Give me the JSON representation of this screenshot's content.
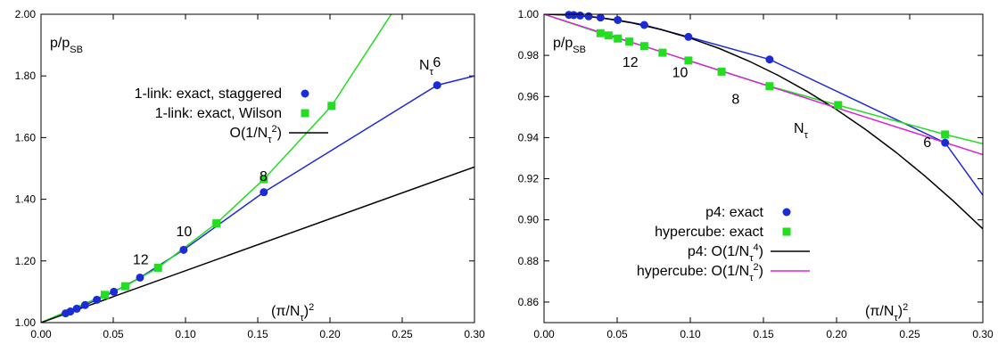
{
  "chart_data": [
    {
      "type": "scatter",
      "ylabel": "p/p",
      "ylabel_sub": "SB",
      "xlabel": "(π/N",
      "xlabel_sub": "τ",
      "xlabel_tail": ")",
      "xlabel_sup": "2",
      "xlim": [
        0.0,
        0.3
      ],
      "ylim": [
        1.0,
        2.0
      ],
      "xticks": [
        "0.00",
        "0.05",
        "0.10",
        "0.15",
        "0.20",
        "0.25",
        "0.30"
      ],
      "yticks": [
        "1.00",
        "1.20",
        "1.40",
        "1.60",
        "1.80",
        "2.00"
      ],
      "ntau_label": "N",
      "ntau_sub": "τ",
      "annotations": [
        {
          "text": "6",
          "x": 0.274,
          "y": 1.83
        },
        {
          "text": "8",
          "x": 0.154,
          "y": 1.46
        },
        {
          "text": "10",
          "x": 0.099,
          "y": 1.28
        },
        {
          "text": "12",
          "x": 0.069,
          "y": 1.19
        }
      ],
      "legend_position": "center-left",
      "series": [
        {
          "name": "1-link: exact, staggered",
          "color": "#1d2bd6",
          "marker": "circle",
          "x": [
            0.017,
            0.0203,
            0.0247,
            0.0305,
            0.0386,
            0.0504,
            0.0685,
            0.0987,
            0.1542,
            0.2742
          ],
          "y": [
            1.03,
            1.036,
            1.045,
            1.057,
            1.074,
            1.1,
            1.146,
            1.236,
            1.423,
            1.77
          ],
          "curve_x": [
            0.0,
            0.017,
            0.0203,
            0.0247,
            0.0305,
            0.0386,
            0.0504,
            0.0685,
            0.0987,
            0.1542,
            0.2742,
            0.3
          ],
          "curve_y": [
            1.0,
            1.03,
            1.036,
            1.045,
            1.057,
            1.074,
            1.1,
            1.146,
            1.236,
            1.423,
            1.77,
            1.8
          ]
        },
        {
          "name": "1-link: exact, Wilson",
          "color": "#22dd22",
          "marker": "square",
          "x": [
            0.0441,
            0.0583,
            0.081,
            0.1214,
            0.1542,
            0.2011
          ],
          "y": [
            1.09,
            1.118,
            1.178,
            1.322,
            1.465,
            1.703
          ],
          "curve_x": [
            0.0,
            0.0441,
            0.0583,
            0.081,
            0.1214,
            0.1542,
            0.2011,
            0.2424
          ],
          "curve_y": [
            1.0,
            1.09,
            1.118,
            1.178,
            1.322,
            1.465,
            1.703,
            2.0
          ]
        },
        {
          "name": "O(1/N",
          "name_sub": "τ",
          "name_sup": "2",
          "name_tail": ")",
          "color": "#000000",
          "marker": "line",
          "curve_x": [
            0.0,
            0.3
          ],
          "curve_y": [
            1.0,
            1.505
          ]
        }
      ]
    },
    {
      "type": "scatter",
      "ylabel": "p/p",
      "ylabel_sub": "SB",
      "xlabel": "(π/N",
      "xlabel_sub": "τ",
      "xlabel_tail": ")",
      "xlabel_sup": "2",
      "xlim": [
        0.0,
        0.3
      ],
      "ylim": [
        0.85,
        1.0
      ],
      "xticks": [
        "0.00",
        "0.05",
        "0.10",
        "0.15",
        "0.20",
        "0.25",
        "0.30"
      ],
      "yticks": [
        "0.86",
        "0.88",
        "0.90",
        "0.92",
        "0.94",
        "0.96",
        "0.98",
        "1.00"
      ],
      "ntau_label": "N",
      "ntau_sub": "τ",
      "annotations": [
        {
          "text": "6",
          "x": 0.262,
          "y": 0.9355
        },
        {
          "text": "8",
          "x": 0.131,
          "y": 0.9565
        },
        {
          "text": "10",
          "x": 0.093,
          "y": 0.9695
        },
        {
          "text": "12",
          "x": 0.059,
          "y": 0.9745
        }
      ],
      "legend_position": "bottom-left",
      "series": [
        {
          "name": "p4: exact",
          "color": "#1d2bd6",
          "marker": "circle",
          "x": [
            0.017,
            0.0203,
            0.0247,
            0.0305,
            0.0386,
            0.0504,
            0.0685,
            0.0987,
            0.1542,
            0.2742
          ],
          "y": [
            0.9997,
            0.9996,
            0.9994,
            0.999,
            0.9984,
            0.9972,
            0.9948,
            0.989,
            0.978,
            0.9375
          ],
          "curve_x": [
            0.0,
            0.017,
            0.0305,
            0.0504,
            0.0685,
            0.0987,
            0.1542,
            0.2742,
            0.3
          ],
          "curve_y": [
            1.0,
            0.9997,
            0.999,
            0.9972,
            0.9948,
            0.989,
            0.978,
            0.9375,
            0.912
          ]
        },
        {
          "name": "hypercube: exact",
          "color": "#22dd22",
          "marker": "square",
          "x": [
            0.0386,
            0.0441,
            0.0504,
            0.0583,
            0.0685,
            0.081,
            0.0987,
            0.1214,
            0.1542,
            0.2011,
            0.2742
          ],
          "y": [
            0.9908,
            0.9897,
            0.9882,
            0.9867,
            0.9845,
            0.9813,
            0.9775,
            0.9721,
            0.965,
            0.9558,
            0.9415
          ],
          "curve_x": [
            0.0,
            0.0386,
            0.0504,
            0.0685,
            0.0987,
            0.1542,
            0.2011,
            0.2742,
            0.3
          ],
          "curve_y": [
            1.0,
            0.9908,
            0.9882,
            0.9845,
            0.9775,
            0.965,
            0.9558,
            0.9415,
            0.937
          ]
        },
        {
          "name": "p4: O(1/N",
          "name_sub": "τ",
          "name_sup": "4",
          "name_tail": ")",
          "color": "#000000",
          "marker": "line",
          "fn": "1-1.16*x*x",
          "curve_x": [
            0.0,
            0.02,
            0.04,
            0.06,
            0.08,
            0.1,
            0.12,
            0.14,
            0.16,
            0.18,
            0.2,
            0.22,
            0.24,
            0.26,
            0.28,
            0.3
          ],
          "curve_y": [
            1.0,
            0.99954,
            0.99814,
            0.99582,
            0.99258,
            0.9884,
            0.9833,
            0.97726,
            0.9703,
            0.96242,
            0.9536,
            0.94386,
            0.93318,
            0.92158,
            0.90906,
            0.8956
          ]
        },
        {
          "name": "hypercube: O(1/N",
          "name_sub": "τ",
          "name_sup": "2",
          "name_tail": ")",
          "color": "#e020d8",
          "marker": "line",
          "curve_x": [
            0.0,
            0.3
          ],
          "curve_y": [
            1.0,
            0.9317
          ]
        }
      ]
    }
  ]
}
